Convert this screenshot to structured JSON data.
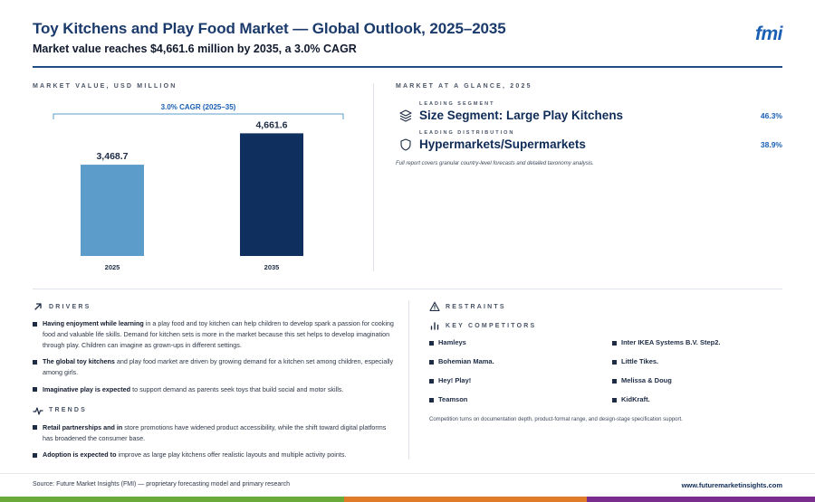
{
  "header": {
    "title": "Toy Kitchens and Play Food Market — Global Outlook, 2025–2035",
    "subtitle": "Market value reaches $4,661.6 million by 2035, a 3.0% CAGR",
    "logo_text": "fmi"
  },
  "chart_panel": {
    "label": "MARKET VALUE, USD MILLION"
  },
  "chart_data": {
    "type": "bar",
    "categories": [
      "2025",
      "2035"
    ],
    "values": [
      3468.7,
      4661.6
    ],
    "value_labels": [
      "3,468.7",
      "4,661.6"
    ],
    "bar_colors": [
      "#5b9ccb",
      "#0f2f5e"
    ],
    "annotation": "3.0% CAGR (2025–35)",
    "title": "",
    "xlabel": "",
    "ylabel": "",
    "ylim": [
      0,
      5500
    ]
  },
  "glance": {
    "label": "MARKET AT A GLANCE, 2025",
    "items": [
      {
        "sub": "LEADING SEGMENT",
        "main": "Size Segment: Large Play Kitchens",
        "value": "46.3%",
        "icon": "layers-icon"
      },
      {
        "sub": "LEADING DISTRIBUTION",
        "main": "Hypermarkets/Supermarkets",
        "value": "38.9%",
        "icon": "shield-icon"
      }
    ],
    "note": "Full report covers granular country-level forecasts and detailed taxonomy analysis."
  },
  "drivers": {
    "label": "DRIVERS",
    "items": [
      {
        "bold": "Having enjoyment while learning",
        "text": " in a play food and toy kitchen can help children to develop spark a passion for cooking food and valuable life skills. Demand for kitchen sets is more in the market because this set helps to develop imagination through play. Children can imagine as grown-ups in different settings."
      },
      {
        "bold": "The global toy kitchens",
        "text": " and play food market are driven by growing demand for a kitchen set among children, especially among girls."
      },
      {
        "bold": "Imaginative play is expected",
        "text": " to support demand as parents seek toys that build social and motor skills."
      }
    ]
  },
  "trends": {
    "label": "TRENDS",
    "items": [
      {
        "bold": "Retail partnerships and in",
        "text": " store promotions have widened product accessibility, while the shift toward digital platforms has broadened the consumer base."
      },
      {
        "bold": "Adoption is expected to",
        "text": " improve as large play kitchens offer realistic layouts and multiple activity points."
      }
    ]
  },
  "restraints": {
    "label": "RESTRAINTS"
  },
  "competitors": {
    "label": "KEY COMPETITORS",
    "items": [
      "Hamleys",
      "Inter IKEA Systems B.V. Step2.",
      "Bohemian Mama.",
      "Little Tikes.",
      "Hey! Play!",
      "Melissa & Doug",
      "Teamson",
      "KidKraft."
    ],
    "note": "Competition turns on documentation depth, product-format range, and design-stage specification support."
  },
  "footer": {
    "source": "Source: Future Market Insights (FMI) — proprietary forecasting model and primary research",
    "site": "www.futuremarketinsights.com"
  },
  "colors": {
    "accent_blue": "#1a5fb4",
    "navy": "#0f2b57",
    "band_green": "#6aaa3a",
    "band_orange": "#e07b2a",
    "band_purple": "#7b2d8e"
  }
}
